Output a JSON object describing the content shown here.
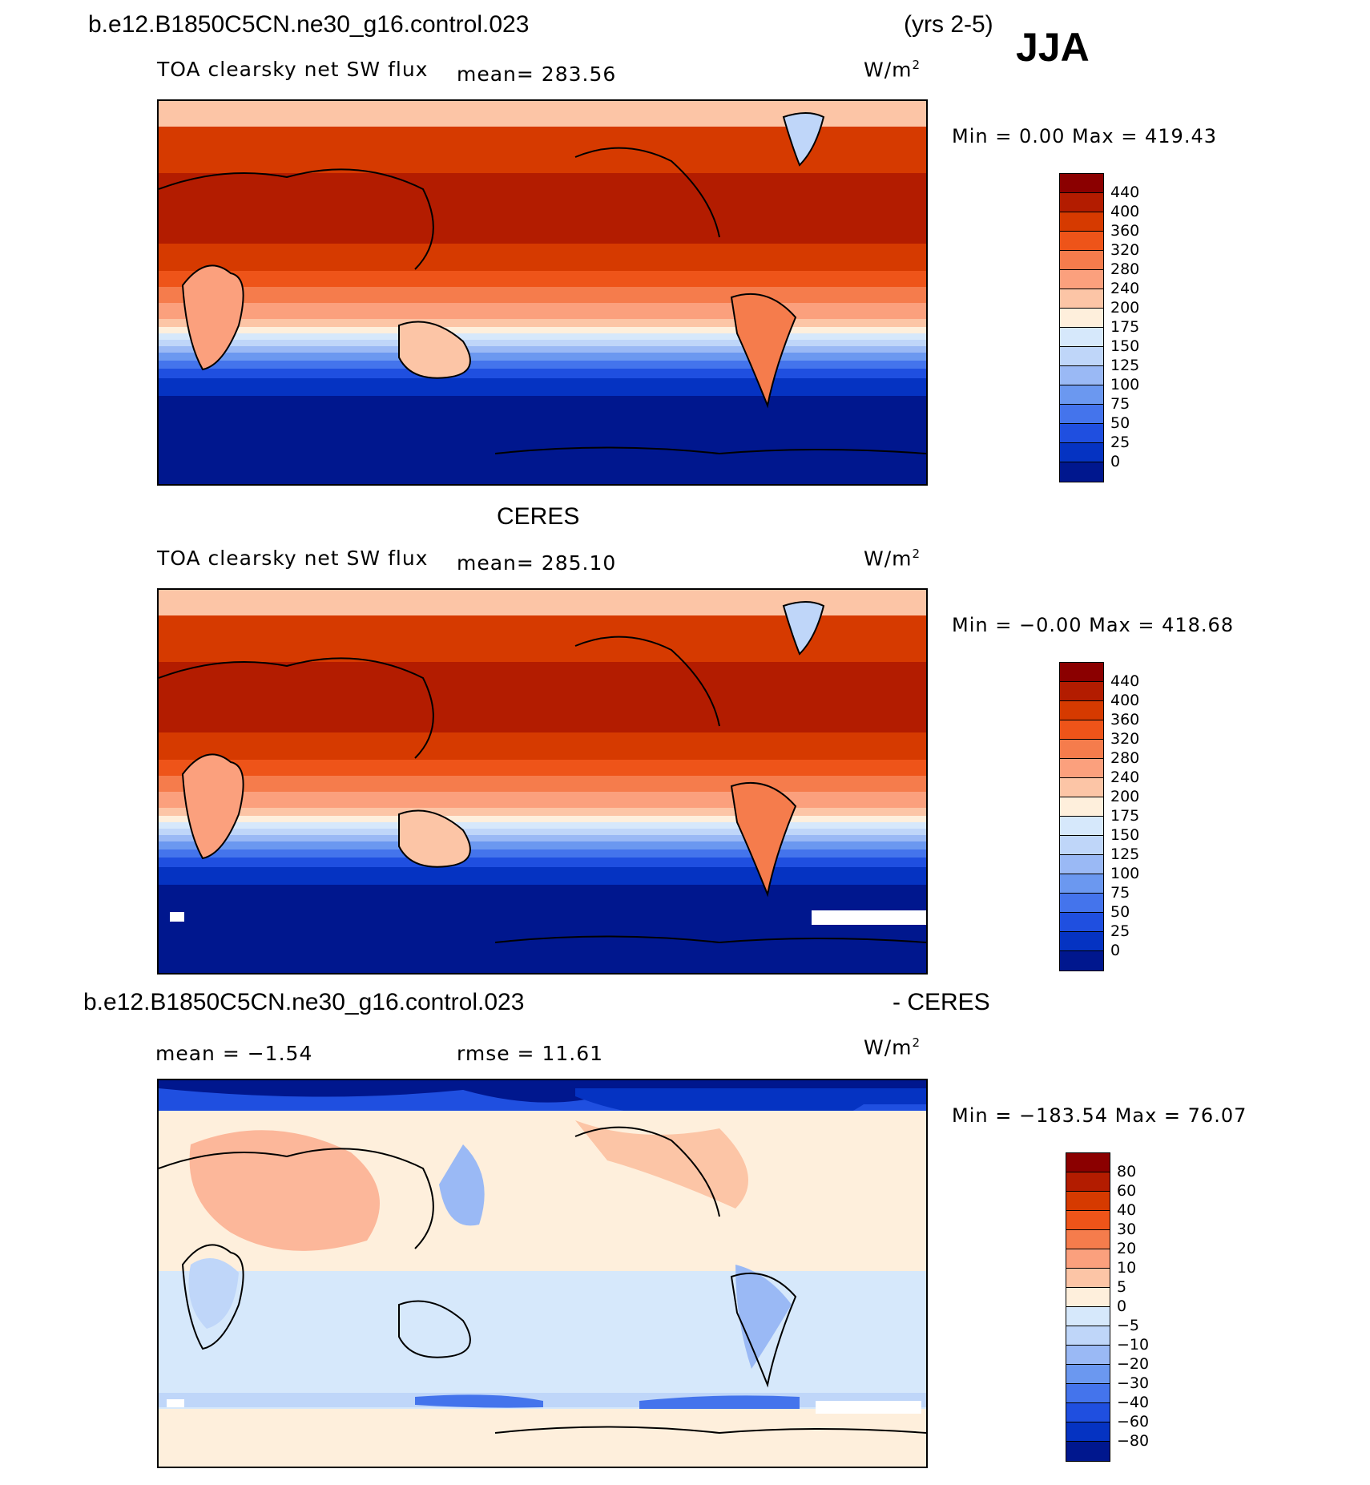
{
  "header": {
    "case_name": "b.e12.B1850C5CN.ne30_g16.control.023",
    "years": "(yrs 2-5)",
    "season": "JJA"
  },
  "panels": [
    {
      "id": "model",
      "title_left": "",
      "variable": "TOA clearsky net SW flux",
      "mean_text": "mean= 283.56",
      "units_base": "W/m",
      "units_exp": "2",
      "min_max": "Min =    0.00 Max = 419.43",
      "levels": [
        "440",
        "400",
        "360",
        "320",
        "280",
        "240",
        "200",
        "175",
        "150",
        "125",
        "100",
        "75",
        "50",
        "25",
        "0"
      ],
      "colors": [
        "#8b0000",
        "#b31c00",
        "#d63a00",
        "#ee5419",
        "#f57c4c",
        "#fba07d",
        "#fcc5a6",
        "#feefdc",
        "#d6e8fb",
        "#bfd6f9",
        "#9ab9f5",
        "#6b98f0",
        "#4474ec",
        "#1f4fe0",
        "#0533c2",
        "#00178e"
      ]
    },
    {
      "id": "obs",
      "title_left": "CERES",
      "variable": "TOA clearsky net SW flux",
      "mean_text": "mean= 285.10",
      "units_base": "W/m",
      "units_exp": "2",
      "min_max": "Min =  −0.00 Max = 418.68",
      "levels": [
        "440",
        "400",
        "360",
        "320",
        "280",
        "240",
        "200",
        "175",
        "150",
        "125",
        "100",
        "75",
        "50",
        "25",
        "0"
      ],
      "colors": [
        "#8b0000",
        "#b31c00",
        "#d63a00",
        "#ee5419",
        "#f57c4c",
        "#fba07d",
        "#fcc5a6",
        "#feefdc",
        "#d6e8fb",
        "#bfd6f9",
        "#9ab9f5",
        "#6b98f0",
        "#4474ec",
        "#1f4fe0",
        "#0533c2",
        "#00178e"
      ]
    },
    {
      "id": "diff",
      "title_left": "b.e12.B1850C5CN.ne30_g16.control.023",
      "title_right": "- CERES",
      "mean_text": "mean =   −1.54",
      "rmse_text": "rmse =   11.61",
      "units_base": "W/m",
      "units_exp": "2",
      "min_max": "Min = −183.54 Max =  76.07",
      "levels": [
        "80",
        "60",
        "40",
        "30",
        "20",
        "10",
        "5",
        "0",
        "−5",
        "−10",
        "−20",
        "−30",
        "−40",
        "−60",
        "−80"
      ],
      "colors": [
        "#8b0000",
        "#b31c00",
        "#d63a00",
        "#ee5419",
        "#f57c4c",
        "#fba07d",
        "#fcc5a6",
        "#feefdc",
        "#d6e8fb",
        "#bfd6f9",
        "#9ab9f5",
        "#6b98f0",
        "#4474ec",
        "#1f4fe0",
        "#0533c2",
        "#00178e"
      ]
    }
  ]
}
